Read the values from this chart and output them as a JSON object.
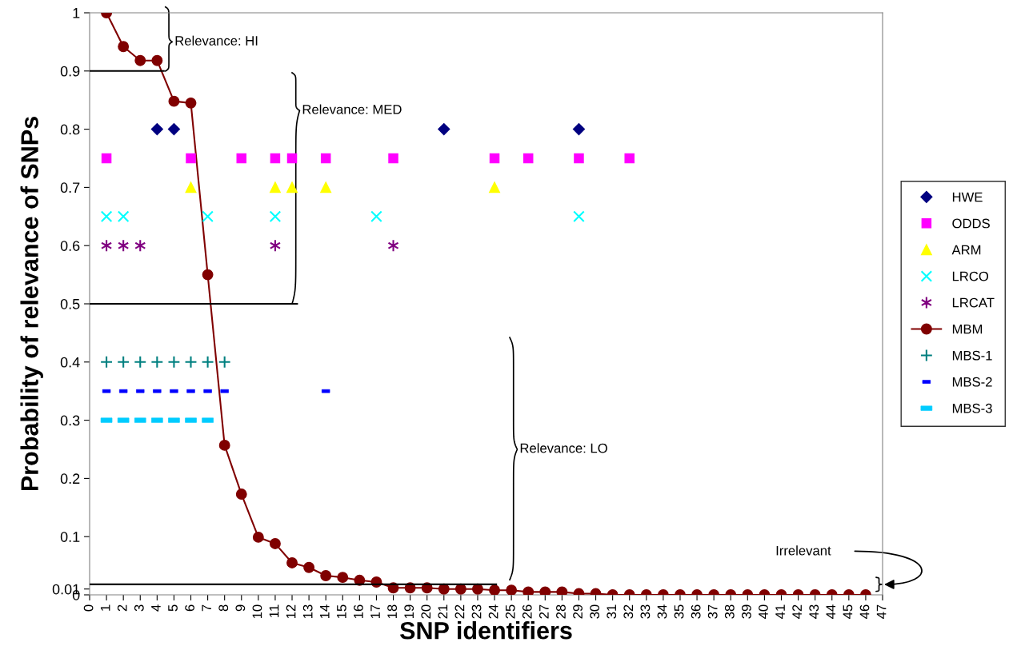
{
  "chart_data": {
    "type": "scatter",
    "xlabel": "SNP identifiers",
    "ylabel": "Probability of relevance of SNPs",
    "xlim": [
      0,
      47
    ],
    "xticks": [
      0,
      1,
      2,
      3,
      4,
      5,
      6,
      7,
      8,
      9,
      10,
      11,
      12,
      13,
      14,
      15,
      16,
      17,
      18,
      19,
      20,
      21,
      22,
      23,
      24,
      25,
      26,
      27,
      28,
      29,
      30,
      31,
      32,
      33,
      34,
      35,
      36,
      37,
      38,
      39,
      40,
      41,
      42,
      43,
      44,
      45,
      46,
      47
    ],
    "ylim": [
      0,
      1
    ],
    "yticks": [
      0,
      {
        "value": 0.01,
        "label": "0.01"
      },
      0.1,
      0.2,
      0.3,
      0.4,
      0.5,
      0.6,
      0.7,
      0.8,
      0.9,
      1
    ],
    "grid": false,
    "legend": "right",
    "series": [
      {
        "name": "HWE",
        "marker": "diamond",
        "color": "#000080",
        "x": [
          4,
          5,
          21,
          29
        ],
        "values": [
          0.8,
          0.8,
          0.8,
          0.8
        ]
      },
      {
        "name": "ODDS",
        "marker": "square",
        "color": "#ff00ff",
        "x": [
          1,
          6,
          9,
          11,
          12,
          14,
          18,
          24,
          26,
          29,
          32
        ],
        "values": [
          0.75,
          0.75,
          0.75,
          0.75,
          0.75,
          0.75,
          0.75,
          0.75,
          0.75,
          0.75,
          0.75
        ]
      },
      {
        "name": "ARM",
        "marker": "triangle",
        "color": "#ffff00",
        "x": [
          6,
          11,
          12,
          14,
          24
        ],
        "values": [
          0.7,
          0.7,
          0.7,
          0.7,
          0.7
        ]
      },
      {
        "name": "LRCO",
        "marker": "cross",
        "color": "#00ffff",
        "x": [
          1,
          2,
          7,
          11,
          17,
          29
        ],
        "values": [
          0.65,
          0.65,
          0.65,
          0.65,
          0.65,
          0.65
        ]
      },
      {
        "name": "LRCAT",
        "marker": "cross",
        "color": "#800080",
        "x": [
          1,
          2,
          3,
          11,
          18
        ],
        "values": [
          0.6,
          0.6,
          0.6,
          0.6,
          0.6
        ]
      },
      {
        "name": "MBM",
        "type": "line",
        "marker": "circle",
        "color": "#800000",
        "x": [
          1,
          2,
          3,
          4,
          5,
          6,
          7,
          8,
          9,
          10,
          11,
          12,
          13,
          14,
          15,
          16,
          17,
          18,
          19,
          20,
          21,
          22,
          23,
          24,
          25,
          26,
          27,
          28,
          29,
          30,
          31,
          32,
          33,
          34,
          35,
          36,
          37,
          38,
          39,
          40,
          41,
          42,
          43,
          44,
          45,
          46
        ],
        "values": [
          1.0,
          0.942,
          0.918,
          0.918,
          0.848,
          0.845,
          0.55,
          0.257,
          0.173,
          0.099,
          0.088,
          0.055,
          0.047,
          0.033,
          0.03,
          0.025,
          0.022,
          0.012,
          0.012,
          0.012,
          0.01,
          0.01,
          0.01,
          0.008,
          0.008,
          0.005,
          0.005,
          0.005,
          0.002,
          0.002,
          0,
          0,
          0,
          0,
          0,
          0,
          0,
          0,
          0,
          0,
          0,
          0,
          0,
          0,
          0,
          0
        ]
      },
      {
        "name": "MBS-1",
        "marker": "cross",
        "color": "#008080",
        "x": [
          1,
          2,
          3,
          4,
          5,
          6,
          7,
          8
        ],
        "values": [
          0.4,
          0.4,
          0.4,
          0.4,
          0.4,
          0.4,
          0.4,
          0.4
        ]
      },
      {
        "name": "MBS-2",
        "marker": "square",
        "color": "#0000ff",
        "x": [
          1,
          2,
          3,
          4,
          5,
          6,
          7,
          8,
          14
        ],
        "values": [
          0.35,
          0.35,
          0.35,
          0.35,
          0.35,
          0.35,
          0.35,
          0.35,
          0.35
        ]
      },
      {
        "name": "MBS-3",
        "marker": "square",
        "color": "#00ccff",
        "x": [
          1,
          2,
          3,
          4,
          5,
          6,
          7
        ],
        "values": [
          0.3,
          0.3,
          0.3,
          0.3,
          0.3,
          0.3,
          0.3
        ]
      },
      {
        "type": "line",
        "marker": "none",
        "color": "#000000",
        "x": [
          0,
          4.4
        ],
        "values": [
          0.9,
          0.9
        ]
      },
      {
        "type": "line",
        "marker": "none",
        "color": "#000000",
        "x": [
          0,
          12.3
        ],
        "values": [
          0.5,
          0.5
        ]
      },
      {
        "type": "line",
        "marker": "none",
        "color": "#000000",
        "x": [
          0,
          24.1
        ],
        "values": [
          0.018,
          0.018
        ]
      }
    ],
    "annotations": [
      "Relevance: HI",
      "Relevance: MED",
      "Relevance: LO",
      "Irrelevant"
    ]
  }
}
